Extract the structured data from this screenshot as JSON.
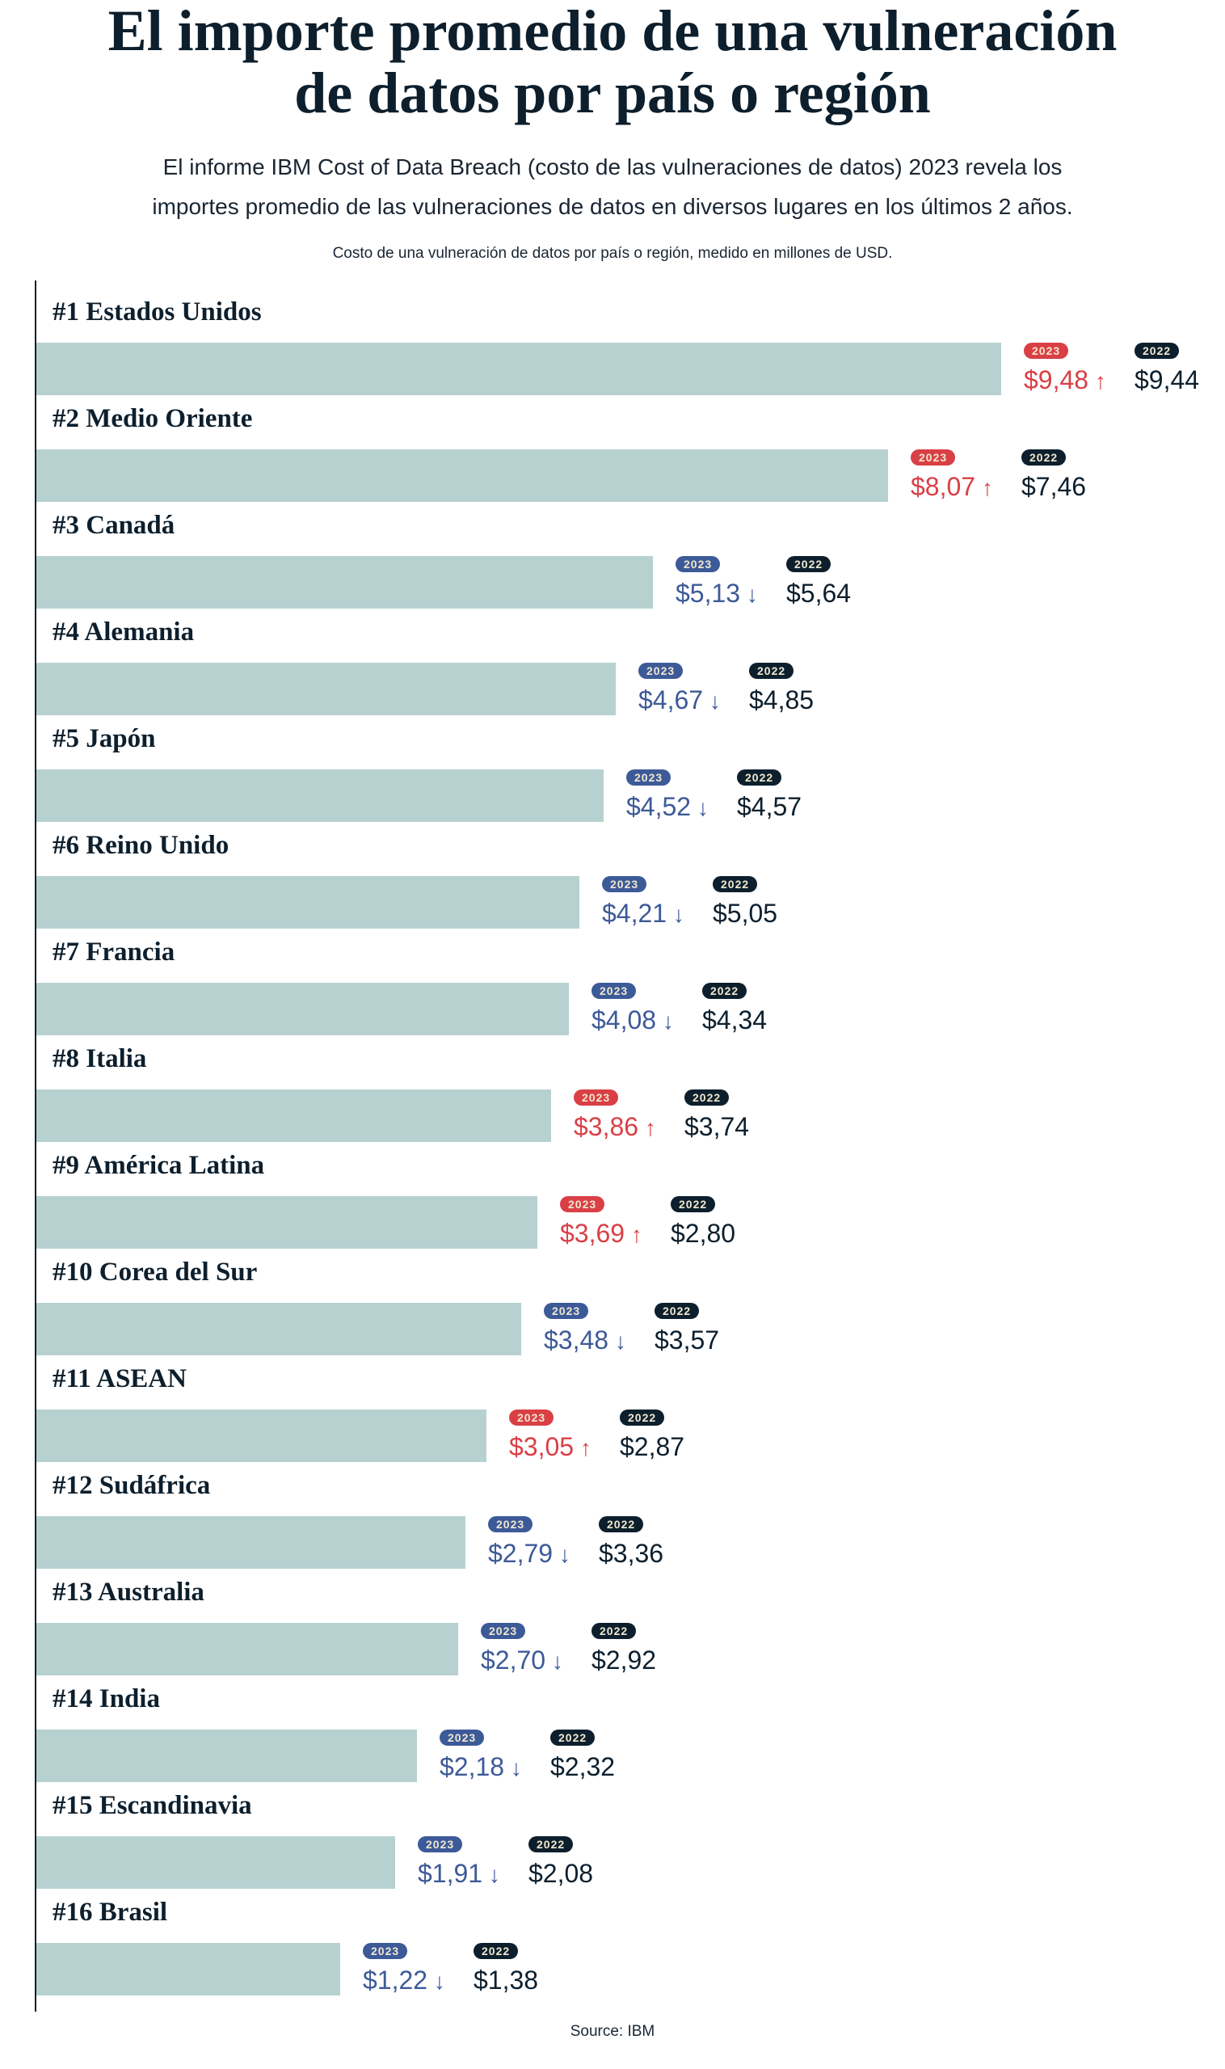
{
  "title_lines": [
    "El importe promedio de una vulneración",
    "de datos por país o región"
  ],
  "subtitle_lines": [
    "El informe IBM Cost of Data Breach (costo de las vulneraciones de datos) 2023 revela los",
    "importes promedio de las vulneraciones de datos en diversos lugares en los últimos 2 años."
  ],
  "caption": "Costo de una vulneración de datos por país o región, medido en millones de USD.",
  "source": "Source: IBM",
  "colors": {
    "bar": "#b7d1d1",
    "increase": "#da3f46",
    "decrease": "#3d5a98",
    "year_2022": "#0d1f2d",
    "badge_text": "#f0e8cf"
  },
  "chart_data": {
    "type": "bar",
    "orientation": "horizontal",
    "title": "El importe promedio de una vulneración de datos por país o región",
    "unit": "millones de USD",
    "currency_symbol": "$",
    "badge_2023": "2023",
    "badge_2022": "2022",
    "up_icon": "arrow-up",
    "down_icon": "arrow-down",
    "categories": [
      "#1 Estados Unidos",
      "#2 Medio Oriente",
      "#3 Canadá",
      "#4 Alemania",
      "#5 Japón",
      "#6 Reino Unido",
      "#7 Francia",
      "#8 Italia",
      "#9 América Latina",
      "#10 Corea del Sur",
      "#11 ASEAN",
      "#12 Sudáfrica",
      "#13 Australia",
      "#14 India",
      "#15 Escandinavia",
      "#16 Brasil"
    ],
    "series": [
      {
        "name": "2023",
        "values": [
          9.48,
          8.07,
          5.13,
          4.67,
          4.52,
          4.21,
          4.08,
          3.86,
          3.69,
          3.48,
          3.05,
          2.79,
          2.7,
          2.18,
          1.91,
          1.22
        ],
        "labels": [
          "$9,48",
          "$8,07",
          "$5,13",
          "$4,67",
          "$4,52",
          "$4,21",
          "$4,08",
          "$3,86",
          "$3,69",
          "$3,48",
          "$3,05",
          "$2,79",
          "$2,70",
          "$2,18",
          "$1,91",
          "$1,22"
        ]
      },
      {
        "name": "2022",
        "values": [
          9.44,
          7.46,
          5.64,
          4.85,
          4.57,
          5.05,
          4.34,
          3.74,
          2.8,
          3.57,
          2.87,
          3.36,
          2.92,
          2.32,
          2.08,
          1.38
        ],
        "labels": [
          "$9,44",
          "$7,46",
          "$5,64",
          "$4,85",
          "$4,57",
          "$5,05",
          "$4,34",
          "$3,74",
          "$2,80",
          "$3,57",
          "$2,87",
          "$3,36",
          "$2,92",
          "$2,32",
          "$2,08",
          "$1,38"
        ]
      }
    ]
  }
}
